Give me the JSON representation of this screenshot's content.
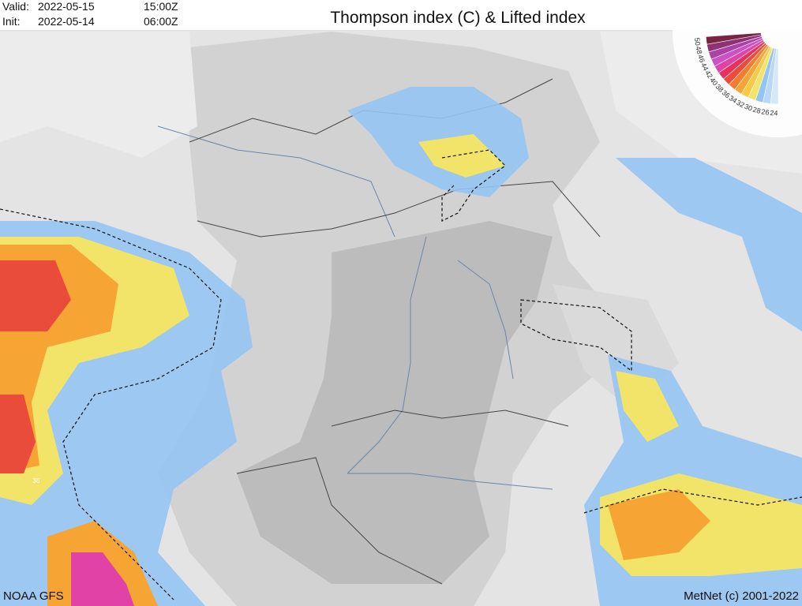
{
  "header": {
    "valid_label": "Valid:",
    "valid_date": "2022-05-15",
    "valid_time": "15:00Z",
    "init_label": "Init:",
    "init_date": "2022-05-14",
    "init_time": "06:00Z",
    "title": "Thompson index (C) & Lifted index"
  },
  "legend": {
    "levels": [
      {
        "value": 24,
        "color": "#d6e8f8"
      },
      {
        "value": 26,
        "color": "#b8d8f6"
      },
      {
        "value": 28,
        "color": "#94c4f2"
      },
      {
        "value": 30,
        "color": "#f2e468"
      },
      {
        "value": 32,
        "color": "#f6ca48"
      },
      {
        "value": 34,
        "color": "#f6a434"
      },
      {
        "value": 36,
        "color": "#f27c30"
      },
      {
        "value": 38,
        "color": "#ea4c3c"
      },
      {
        "value": 40,
        "color": "#e8305c"
      },
      {
        "value": 42,
        "color": "#e042a6"
      },
      {
        "value": 44,
        "color": "#cc52c4"
      },
      {
        "value": 46,
        "color": "#ac42a4"
      },
      {
        "value": 48,
        "color": "#8e3274"
      },
      {
        "value": 50,
        "color": "#782444"
      }
    ]
  },
  "contour_labels": [
    "36"
  ],
  "footer": {
    "source": "NOAA GFS",
    "credit": "MetNet (c) 2001-2022"
  }
}
